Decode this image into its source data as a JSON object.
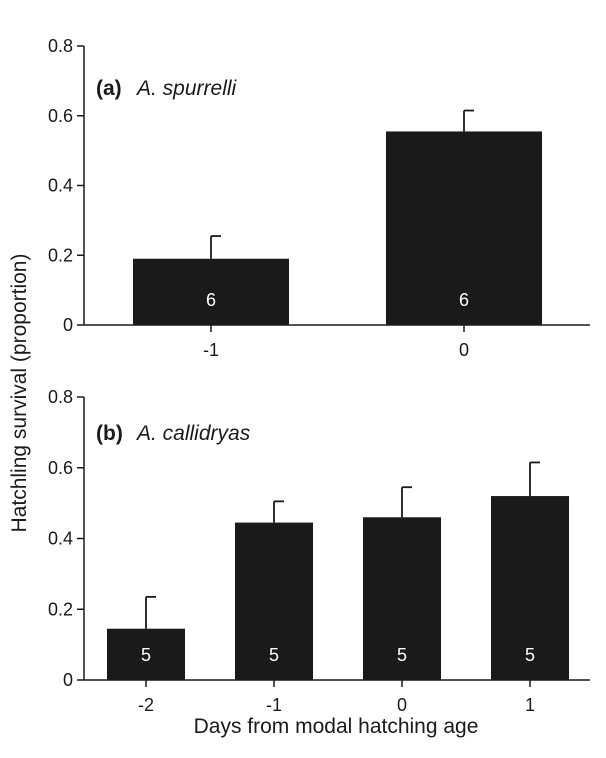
{
  "chart_data": [
    {
      "type": "bar",
      "panel_label": "(a)",
      "species": "A. spurrelli",
      "categories": [
        "-1",
        "0"
      ],
      "values": [
        0.19,
        0.555
      ],
      "errors": [
        0.065,
        0.06
      ],
      "sample_sizes": [
        "6",
        "6"
      ],
      "ylim": [
        0,
        0.8
      ],
      "yticks": [
        "0",
        "0.2",
        "0.4",
        "0.6",
        "0.8"
      ],
      "bar_color": "#1a1a1a"
    },
    {
      "type": "bar",
      "panel_label": "(b)",
      "species": "A. callidryas",
      "categories": [
        "-2",
        "-1",
        "0",
        "1"
      ],
      "values": [
        0.145,
        0.445,
        0.46,
        0.52
      ],
      "errors": [
        0.09,
        0.06,
        0.085,
        0.095
      ],
      "sample_sizes": [
        "5",
        "5",
        "5",
        "5"
      ],
      "ylim": [
        0,
        0.8
      ],
      "yticks": [
        "0",
        "0.2",
        "0.4",
        "0.6",
        "0.8"
      ],
      "bar_color": "#1a1a1a"
    }
  ],
  "ylabel": "Hatchling survival (proportion)",
  "xlabel": "Days from modal hatching age"
}
